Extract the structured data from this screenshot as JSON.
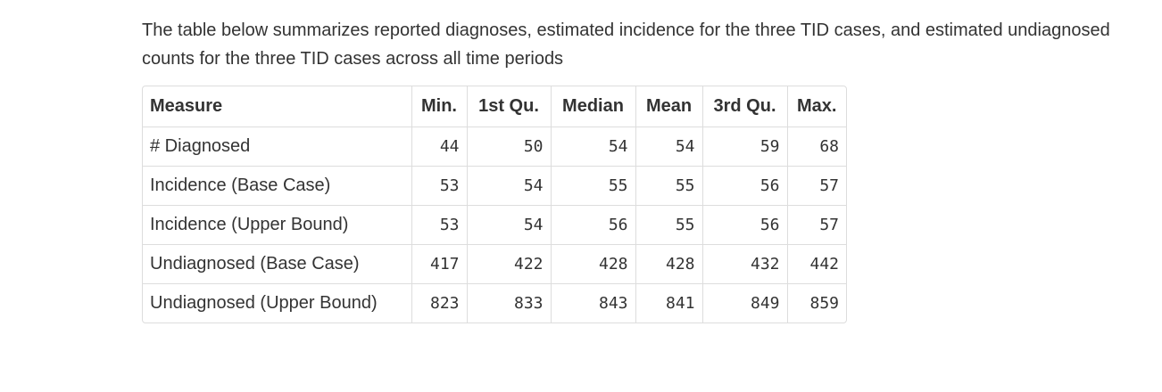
{
  "intro": "The table below summarizes reported diagnoses, estimated incidence for the three TID cases, and estimated undiagnosed counts for the three TID cases across all time periods",
  "table": {
    "headers": [
      "Measure",
      "Min.",
      "1st Qu.",
      "Median",
      "Mean",
      "3rd Qu.",
      "Max."
    ],
    "rows": [
      [
        "# Diagnosed",
        "44",
        "50",
        "54",
        "54",
        "59",
        "68"
      ],
      [
        "Incidence (Base Case)",
        "53",
        "54",
        "55",
        "55",
        "56",
        "57"
      ],
      [
        "Incidence (Upper Bound)",
        "53",
        "54",
        "56",
        "55",
        "56",
        "57"
      ],
      [
        "Undiagnosed (Base Case)",
        "417",
        "422",
        "428",
        "428",
        "432",
        "442"
      ],
      [
        "Undiagnosed (Upper Bound)",
        "823",
        "833",
        "843",
        "841",
        "849",
        "859"
      ]
    ]
  }
}
